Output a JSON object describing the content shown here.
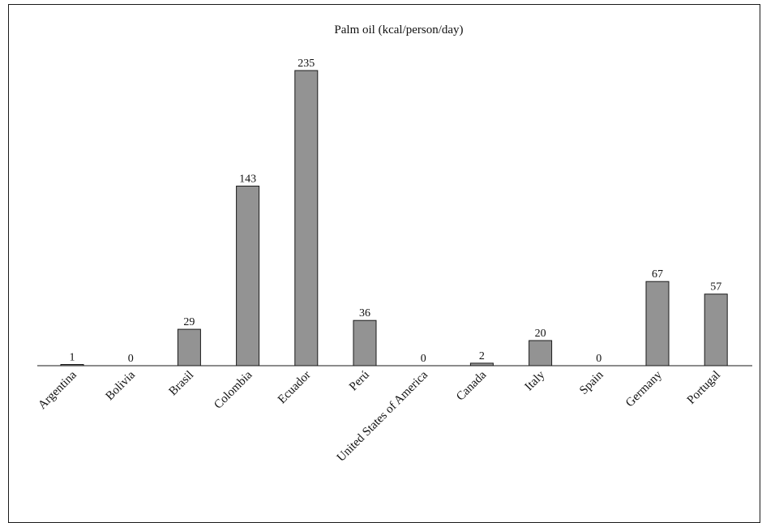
{
  "chart_data": {
    "type": "bar",
    "title": "Palm oil (kcal/person/day)",
    "xlabel": "",
    "ylabel": "",
    "categories": [
      "Argentina",
      "Bolivia",
      "Brasil",
      "Colombia",
      "Ecuador",
      "Perú",
      "United States of America",
      "Canada",
      "Italy",
      "Spain",
      "Germany",
      "Portugal"
    ],
    "values": [
      1,
      0,
      29,
      143,
      235,
      36,
      0,
      2,
      20,
      0,
      67,
      57
    ],
    "ylim": [
      0,
      250
    ],
    "grid": false,
    "legend": "none",
    "colors": {
      "bar": "#939393",
      "outline": "#1a1a1a"
    }
  }
}
